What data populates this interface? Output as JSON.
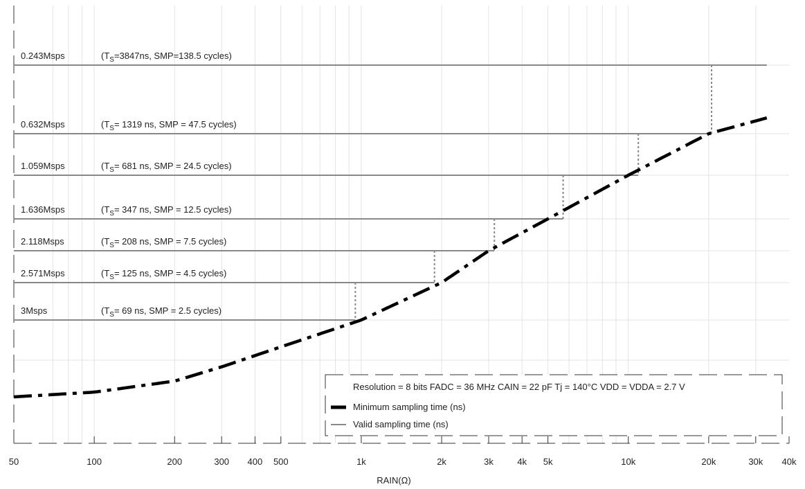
{
  "chart_data": {
    "type": "line",
    "xlabel": "RAIN(Ω)",
    "x_scale": "log",
    "xlim": [
      50,
      40000
    ],
    "x_ticks": [
      {
        "value": 50,
        "label": "50"
      },
      {
        "value": 100,
        "label": "100"
      },
      {
        "value": 200,
        "label": "200"
      },
      {
        "value": 300,
        "label": "300"
      },
      {
        "value": 400,
        "label": "400"
      },
      {
        "value": 500,
        "label": "500"
      },
      {
        "value": 1000,
        "label": "1k"
      },
      {
        "value": 2000,
        "label": "2k"
      },
      {
        "value": 3000,
        "label": "3k"
      },
      {
        "value": 4000,
        "label": "4k"
      },
      {
        "value": 5000,
        "label": "5k"
      },
      {
        "value": 10000,
        "label": "10k"
      },
      {
        "value": 20000,
        "label": "20k"
      },
      {
        "value": 30000,
        "label": "30k"
      },
      {
        "value": 40000,
        "label": "40k"
      }
    ],
    "ylim": [
      0,
      4300
    ],
    "y_ticks": [
      69,
      125,
      208,
      347,
      681,
      1319,
      3847
    ],
    "grid": true,
    "legend_position": "bottom-right",
    "legend_title": "Resolution = 8 bits FADC = 36 MHz CAIN = 22 pF Tj = 140°C VDD = VDDA = 2.7 V",
    "series": [
      {
        "name": "Minimum sampling time (ns)",
        "style": "dash-dot",
        "color": "#000000",
        "x": [
          50,
          100,
          200,
          300,
          500,
          1000,
          2000,
          3000,
          5000,
          10000,
          20000,
          33000
        ],
        "y": [
          -77,
          -68,
          -47,
          -20,
          18,
          69,
          125,
          208,
          347,
          681,
          1319,
          1900
        ]
      },
      {
        "name": "Valid sampling time (ns)",
        "style": "solid",
        "color": "#888888",
        "levels": [
          {
            "rate": "0.243Msps",
            "ts_main": "(T",
            "ts_sub": "S",
            "ts_rest": "=3847ns, SMP=138.5 cycles)",
            "ts_ns": 3847,
            "x_end": 33000,
            "x_limit": 21000
          },
          {
            "rate": "0.632Msps",
            "ts_main": "(T",
            "ts_sub": "S",
            "ts_rest": "= 1319 ns, SMP = 47.5 cycles)",
            "ts_ns": 1319,
            "x_end": 20500,
            "x_limit": 11000
          },
          {
            "rate": "1.059Msps",
            "ts_main": "(T",
            "ts_sub": "S",
            "ts_rest": "= 681 ns, SMP = 24.5 cycles)",
            "ts_ns": 681,
            "x_end": 10900,
            "x_limit": 5800
          },
          {
            "rate": "1.636Msps",
            "ts_main": "(T",
            "ts_sub": "S",
            "ts_rest": "= 347 ns, SMP = 12.5 cycles)",
            "ts_ns": 347,
            "x_end": 5700,
            "x_limit": 3200
          },
          {
            "rate": "2.118Msps",
            "ts_main": "(T",
            "ts_sub": "S",
            "ts_rest": "= 208 ns, SMP = 7.5 cycles)",
            "ts_ns": 208,
            "x_end": 3150,
            "x_limit": 1900
          },
          {
            "rate": "2.571Msps",
            "ts_main": "(T",
            "ts_sub": "S",
            "ts_rest": "= 125 ns, SMP = 4.5 cycles)",
            "ts_ns": 125,
            "x_end": 1880,
            "x_limit": 950
          },
          {
            "rate": "3Msps",
            "ts_main": "(T",
            "ts_sub": "S",
            "ts_rest": "= 69 ns, SMP = 2.5 cycles)",
            "ts_ns": 69,
            "x_end": 950,
            "x_limit": null
          }
        ]
      }
    ]
  }
}
